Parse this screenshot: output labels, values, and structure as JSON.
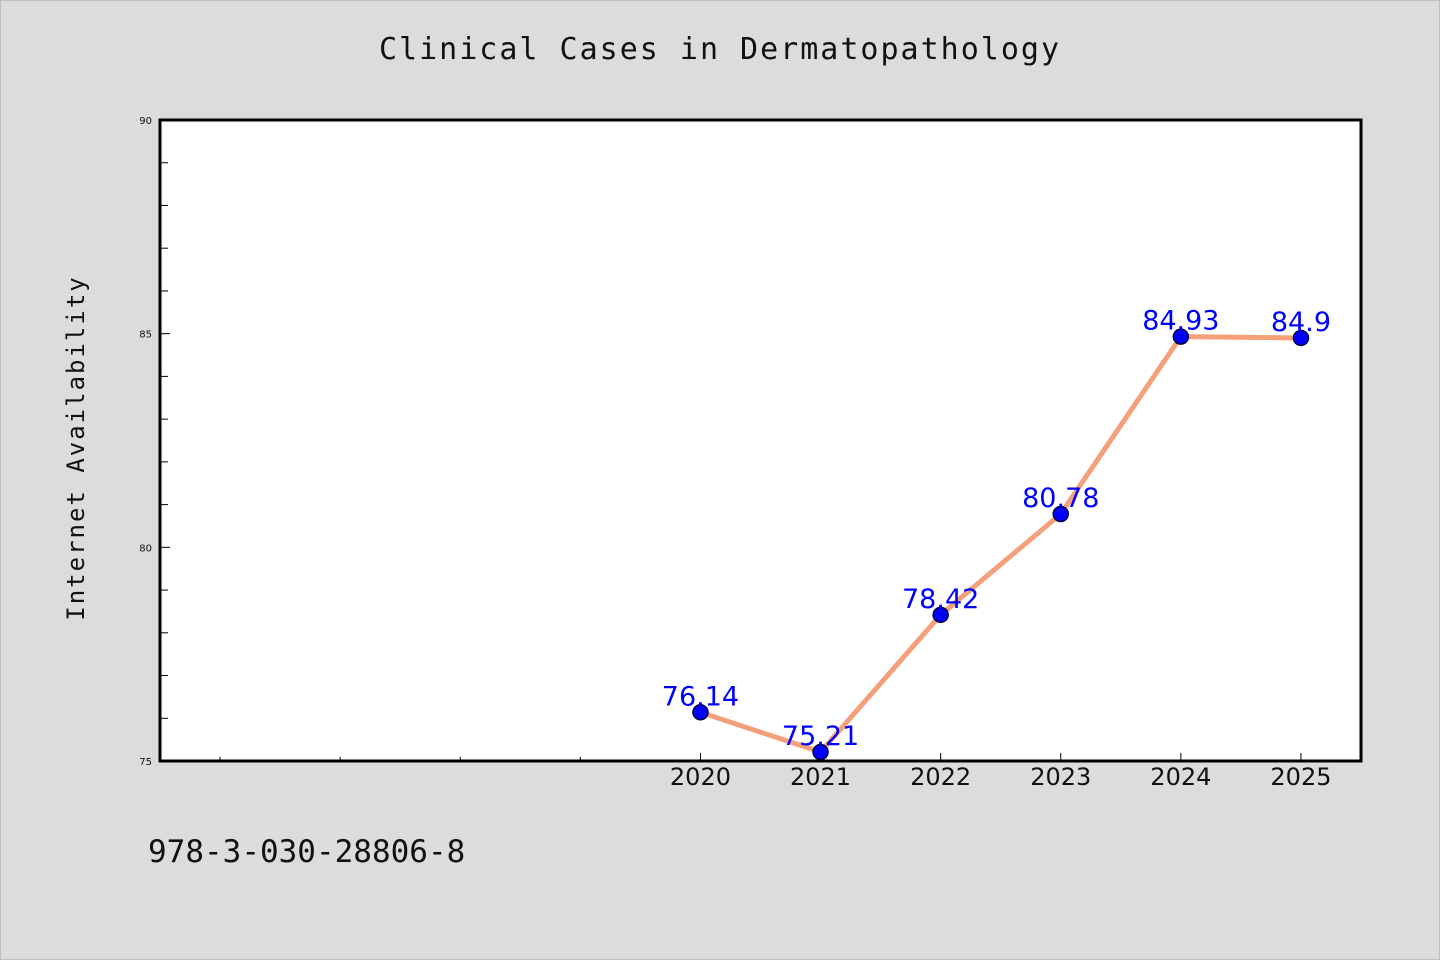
{
  "chart_data": {
    "type": "line",
    "title": "Clinical Cases in Dermatopathology",
    "xlabel": "",
    "ylabel": "Internet Availability",
    "categories": [
      "2020",
      "2021",
      "2022",
      "2023",
      "2024",
      "2025"
    ],
    "x_slots": 10,
    "series": [
      {
        "values": [
          76.14,
          75.21,
          78.42,
          80.78,
          84.93,
          84.9
        ]
      }
    ],
    "data_labels": [
      "76.14",
      "75.21",
      "78.42",
      "80.78",
      "84.93",
      "84.9"
    ],
    "ylim": [
      75,
      90
    ],
    "y_major_ticks": [
      75,
      80,
      85,
      90
    ],
    "y_minor_step": 1,
    "grid": false,
    "legend": "none",
    "colors": {
      "line": "#f4a07a",
      "marker": "#0000ff",
      "marker_edge": "#00003a",
      "label": "#0000ff",
      "axes_frame": "#000000",
      "plot_background": "#ffffff",
      "figure_background": "#dcdcdc"
    }
  },
  "footer": {
    "text": "978-3-030-28806-8"
  }
}
